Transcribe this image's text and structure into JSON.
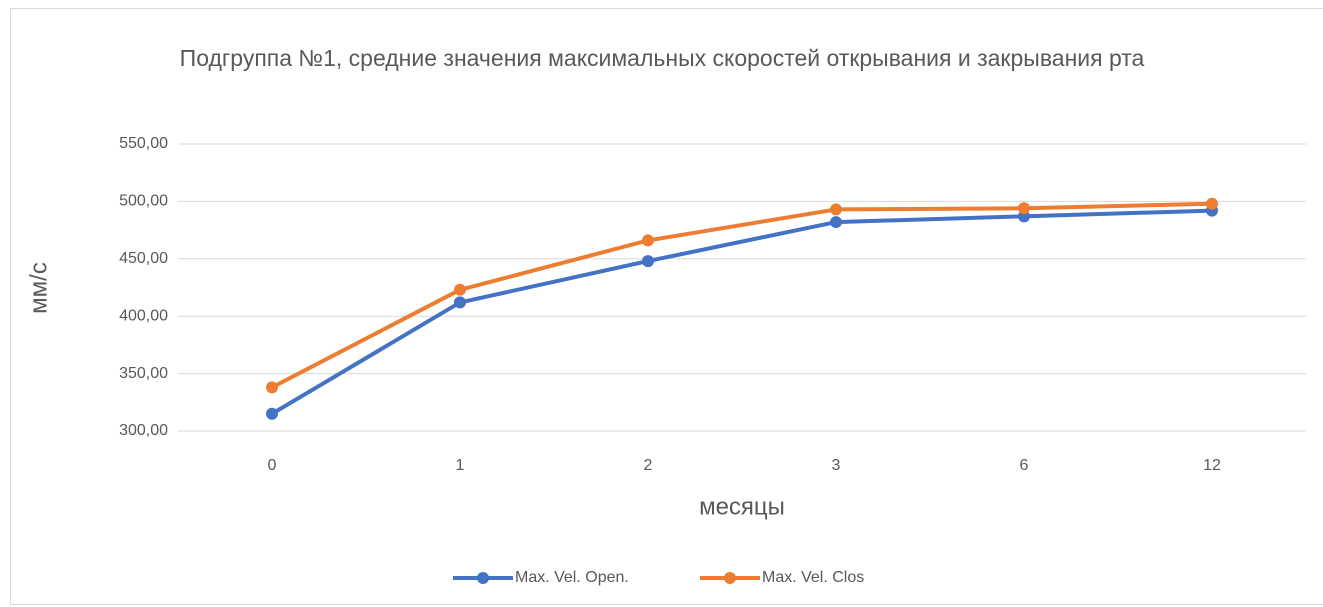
{
  "chart_data": {
    "type": "line",
    "title": "Подгруппа №1, средние значения максимальных скоростей открывания и закрывания рта",
    "x_label": "месяцы",
    "y_label": "мм/с",
    "categories": [
      "0",
      "1",
      "2",
      "3",
      "6",
      "12"
    ],
    "series": [
      {
        "name": "Max. Vel. Open.",
        "color": "#4472c4",
        "values": [
          315,
          412,
          448,
          482,
          487,
          492
        ]
      },
      {
        "name": "Max. Vel. Clos",
        "color": "#ed7d31",
        "values": [
          338,
          423,
          466,
          493,
          494,
          498
        ]
      }
    ],
    "ylim": [
      300,
      550
    ],
    "yticks": [
      {
        "value": 300,
        "label": "300,00"
      },
      {
        "value": 350,
        "label": "350,00"
      },
      {
        "value": 400,
        "label": "400,00"
      },
      {
        "value": 450,
        "label": "450,00"
      },
      {
        "value": 500,
        "label": "500,00"
      },
      {
        "value": 550,
        "label": "550,00"
      }
    ],
    "grid": true,
    "legend": "bottom"
  }
}
